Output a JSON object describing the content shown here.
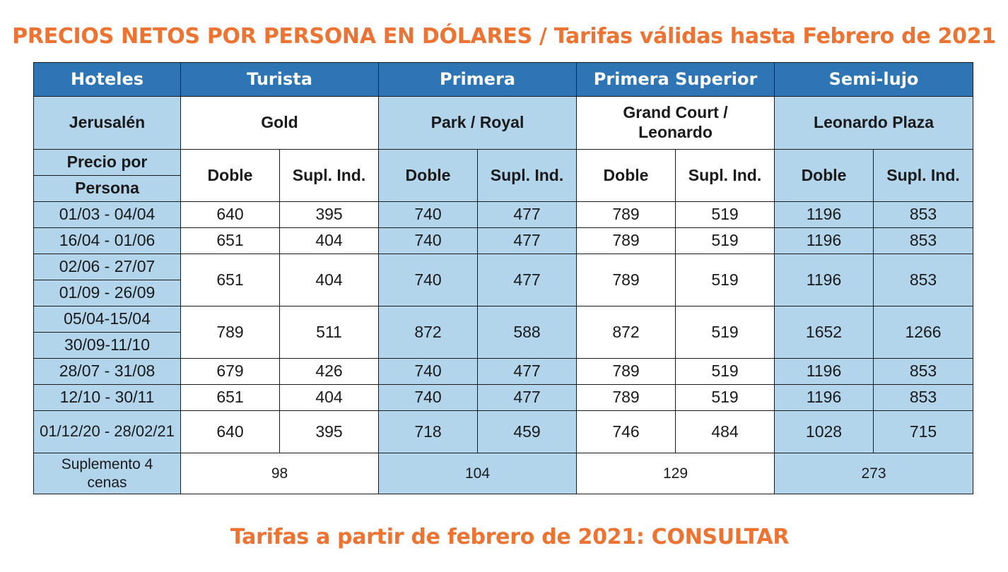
{
  "heading": "PRECIOS NETOS POR PERSONA EN DÓLARES / Tarifas válidas hasta Febrero de 2021",
  "footer": "Tarifas a partir de febrero de 2021: CONSULTAR",
  "table": {
    "header": {
      "hotels": "Hoteles",
      "cat1": "Turista",
      "cat2": "Primera",
      "cat3": "Primera Superior",
      "cat4": "Semi-lujo"
    },
    "city_row": {
      "city": "Jerusalén",
      "hotel1": "Gold",
      "hotel2": "Park / Royal",
      "hotel3_line1": "Grand Court /",
      "hotel3_line2": "Leonardo",
      "hotel4": "Leonardo Plaza"
    },
    "sub_header": {
      "price_line1": "Precio por",
      "price_line2": "Persona",
      "doble": "Doble",
      "supl": "Supl. Ind."
    },
    "rows": [
      {
        "dates": [
          "01/03 - 04/04"
        ],
        "values": [
          "640",
          "395",
          "740",
          "477",
          "789",
          "519",
          "1196",
          "853"
        ]
      },
      {
        "dates": [
          "16/04 - 01/06"
        ],
        "values": [
          "651",
          "404",
          "740",
          "477",
          "789",
          "519",
          "1196",
          "853"
        ]
      },
      {
        "dates": [
          "02/06 - 27/07",
          "01/09 - 26/09"
        ],
        "values": [
          "651",
          "404",
          "740",
          "477",
          "789",
          "519",
          "1196",
          "853"
        ]
      },
      {
        "dates": [
          "05/04-15/04",
          "30/09-11/10"
        ],
        "values": [
          "789",
          "511",
          "872",
          "588",
          "872",
          "519",
          "1652",
          "1266"
        ]
      },
      {
        "dates": [
          "28/07 - 31/08"
        ],
        "values": [
          "679",
          "426",
          "740",
          "477",
          "789",
          "519",
          "1196",
          "853"
        ]
      },
      {
        "dates": [
          "12/10 - 30/11"
        ],
        "values": [
          "651",
          "404",
          "740",
          "477",
          "789",
          "519",
          "1196",
          "853"
        ]
      },
      {
        "dates": [
          "01/12/20 - 28/02/21"
        ],
        "values": [
          "640",
          "395",
          "718",
          "459",
          "746",
          "484",
          "1028",
          "715"
        ]
      }
    ],
    "supplement": {
      "label_line1": "Suplemento 4",
      "label_line2": "cenas",
      "values": [
        "98",
        "104",
        "129",
        "273"
      ]
    }
  },
  "colors": {
    "header_blue": "#2e75b6",
    "light_blue": "#b2d5ec",
    "title_orange": "#ed7332"
  }
}
